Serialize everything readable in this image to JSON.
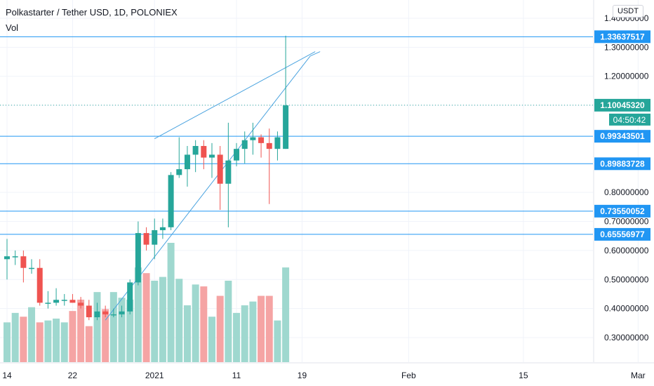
{
  "header": {
    "title": "Polkastarter / Tether USD, 1D, POLONIEX",
    "vol_label": "Vol",
    "currency": "USDT"
  },
  "colors": {
    "up": "#26a69a",
    "down": "#ef5350",
    "up_vol": "#9fd8cf",
    "down_vol": "#f5a4a4",
    "level_line": "#2196f3",
    "pattern_line": "#4aa3df",
    "current_tag": "#26a69a",
    "level_tag": "#2196f3",
    "axis_text": "#131722",
    "grid": "#f0f3fa"
  },
  "chart_data": {
    "type": "candlestick",
    "ylim": [
      0.23,
      1.41
    ],
    "y_ticks": [
      {
        "value": 1.4,
        "label": "1.40000000"
      },
      {
        "value": 1.3,
        "label": "1.30000000"
      },
      {
        "value": 1.2,
        "label": "1.20000000"
      },
      {
        "value": 1.1,
        "label": "1.10000000"
      },
      {
        "value": 0.8,
        "label": "0.80000000"
      },
      {
        "value": 0.7,
        "label": "0.70000000"
      },
      {
        "value": 0.6,
        "label": "0.60000000"
      },
      {
        "value": 0.5,
        "label": "0.50000000"
      },
      {
        "value": 0.4,
        "label": "0.40000000"
      },
      {
        "value": 0.3,
        "label": "0.30000000"
      }
    ],
    "x_ticks": [
      {
        "index": 0,
        "label": "14"
      },
      {
        "index": 8,
        "label": "22"
      },
      {
        "index": 18,
        "label": "2021"
      },
      {
        "index": 28,
        "label": "11"
      },
      {
        "index": 36,
        "label": "19"
      },
      {
        "index": 49,
        "label": "Feb"
      },
      {
        "index": 63,
        "label": "15"
      },
      {
        "index": 77,
        "label": "Mar"
      }
    ],
    "candles": [
      {
        "o": 0.57,
        "h": 0.64,
        "l": 0.5,
        "c": 0.58
      },
      {
        "o": 0.58,
        "h": 0.6,
        "l": 0.55,
        "c": 0.58
      },
      {
        "o": 0.58,
        "h": 0.6,
        "l": 0.49,
        "c": 0.54
      },
      {
        "o": 0.54,
        "h": 0.57,
        "l": 0.52,
        "c": 0.54
      },
      {
        "o": 0.54,
        "h": 0.57,
        "l": 0.41,
        "c": 0.42
      },
      {
        "o": 0.42,
        "h": 0.46,
        "l": 0.4,
        "c": 0.42
      },
      {
        "o": 0.42,
        "h": 0.47,
        "l": 0.41,
        "c": 0.43
      },
      {
        "o": 0.43,
        "h": 0.45,
        "l": 0.41,
        "c": 0.43
      },
      {
        "o": 0.43,
        "h": 0.45,
        "l": 0.42,
        "c": 0.42
      },
      {
        "o": 0.42,
        "h": 0.44,
        "l": 0.4,
        "c": 0.41
      },
      {
        "o": 0.41,
        "h": 0.43,
        "l": 0.36,
        "c": 0.37
      },
      {
        "o": 0.37,
        "h": 0.42,
        "l": 0.36,
        "c": 0.39
      },
      {
        "o": 0.39,
        "h": 0.41,
        "l": 0.37,
        "c": 0.38
      },
      {
        "o": 0.38,
        "h": 0.4,
        "l": 0.37,
        "c": 0.38
      },
      {
        "o": 0.38,
        "h": 0.41,
        "l": 0.37,
        "c": 0.39
      },
      {
        "o": 0.39,
        "h": 0.5,
        "l": 0.38,
        "c": 0.49
      },
      {
        "o": 0.49,
        "h": 0.7,
        "l": 0.48,
        "c": 0.66
      },
      {
        "o": 0.66,
        "h": 0.68,
        "l": 0.6,
        "c": 0.62
      },
      {
        "o": 0.62,
        "h": 0.71,
        "l": 0.57,
        "c": 0.67
      },
      {
        "o": 0.67,
        "h": 0.71,
        "l": 0.64,
        "c": 0.68
      },
      {
        "o": 0.68,
        "h": 0.87,
        "l": 0.67,
        "c": 0.86
      },
      {
        "o": 0.86,
        "h": 0.99,
        "l": 0.85,
        "c": 0.88
      },
      {
        "o": 0.88,
        "h": 0.96,
        "l": 0.82,
        "c": 0.93
      },
      {
        "o": 0.93,
        "h": 0.98,
        "l": 0.87,
        "c": 0.96
      },
      {
        "o": 0.96,
        "h": 0.98,
        "l": 0.88,
        "c": 0.92
      },
      {
        "o": 0.92,
        "h": 0.97,
        "l": 0.85,
        "c": 0.93
      },
      {
        "o": 0.93,
        "h": 0.96,
        "l": 0.74,
        "c": 0.83
      },
      {
        "o": 0.83,
        "h": 1.04,
        "l": 0.68,
        "c": 0.91
      },
      {
        "o": 0.91,
        "h": 0.97,
        "l": 0.89,
        "c": 0.95
      },
      {
        "o": 0.95,
        "h": 1.01,
        "l": 0.9,
        "c": 0.98
      },
      {
        "o": 0.98,
        "h": 1.04,
        "l": 0.93,
        "c": 0.99
      },
      {
        "o": 0.99,
        "h": 1.0,
        "l": 0.92,
        "c": 0.97
      },
      {
        "o": 0.97,
        "h": 1.02,
        "l": 0.76,
        "c": 0.95
      },
      {
        "o": 0.95,
        "h": 1.01,
        "l": 0.91,
        "c": 0.99
      },
      {
        "o": 0.95,
        "h": 1.34,
        "l": 0.95,
        "c": 1.1
      }
    ],
    "volumes": [
      0.21,
      0.26,
      0.24,
      0.29,
      0.21,
      0.22,
      0.23,
      0.21,
      0.27,
      0.33,
      0.19,
      0.37,
      0.28,
      0.37,
      0.34,
      0.33,
      0.5,
      0.47,
      0.43,
      0.45,
      0.63,
      0.44,
      0.3,
      0.41,
      0.4,
      0.24,
      0.35,
      0.43,
      0.26,
      0.3,
      0.32,
      0.35,
      0.35,
      0.22,
      0.5
    ],
    "horizontal_levels": [
      1.33637517,
      0.99343501,
      0.89883728,
      0.73550052,
      0.65556977
    ],
    "level_labels": [
      "1.33637517",
      "0.99343501",
      "0.89883728",
      "0.73550052",
      "0.65556977"
    ],
    "current_price": 1.1004532,
    "current_price_label": "1.10045320",
    "countdown": "04:50:42",
    "pattern_lines": [
      {
        "from": {
          "index": 18,
          "price": 0.985
        },
        "to": {
          "index": 37.6,
          "price": 1.285
        }
      },
      {
        "from": {
          "index": 12,
          "price": 0.36
        },
        "to": {
          "index": 37.0,
          "price": 1.27
        }
      }
    ]
  }
}
